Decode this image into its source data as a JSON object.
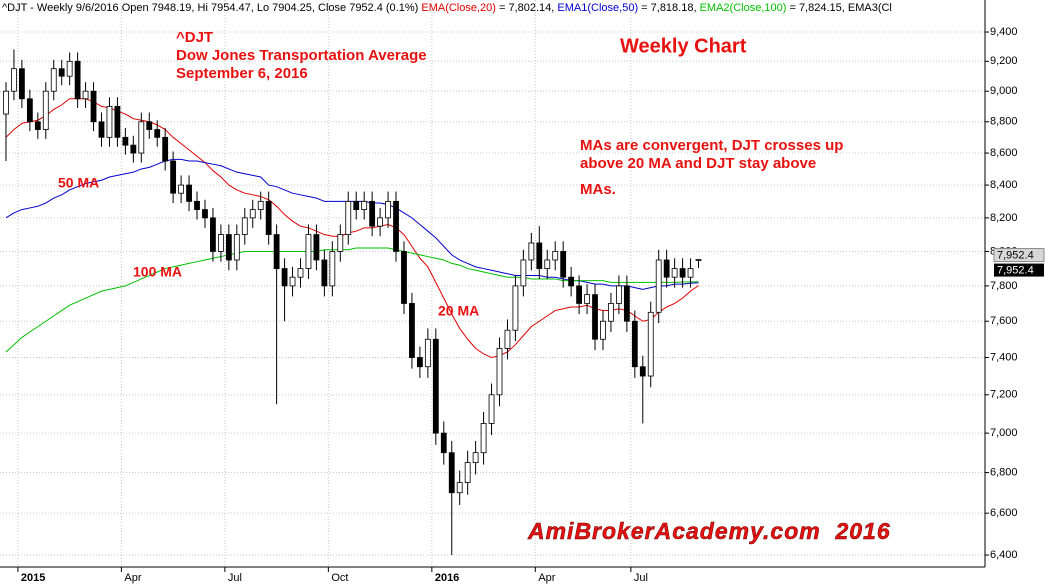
{
  "chart_data": {
    "type": "candlestick",
    "header": [
      {
        "text": "^DJT - Weekly 9/6/2016 Open 7948.19, Hi 7954.47, Lo 7904.25, Close 7952.4 (0.1%) ",
        "color": "#000000"
      },
      {
        "text": "EMA(Close,20)",
        "color": "#e00000"
      },
      {
        "text": " = 7,802.14, ",
        "color": "#000000"
      },
      {
        "text": "EMA1(Close,50)",
        "color": "#0000d0"
      },
      {
        "text": " = 7,818.18, ",
        "color": "#000000"
      },
      {
        "text": "EMA2(Close,100)",
        "color": "#00c000"
      },
      {
        "text": " = 7,824.15, EMA3(Cl",
        "color": "#000000"
      }
    ],
    "annotations": [
      "^DJT",
      "Dow Jones Transportation Average",
      "September 6, 2016",
      "Weekly Chart",
      "MAs are convergent, DJT crosses up",
      "above 20 MA and DJT stay above",
      "MAs.",
      "50 MA",
      "100 MA",
      "20 MA",
      "AmiBrokerAcademy.com  2016"
    ],
    "price_labels": [
      "7,952.4",
      "7,952.4"
    ],
    "last_value": 7952.4,
    "categories": [
      null,
      null,
      "2015",
      null,
      null,
      null,
      null,
      null,
      null,
      null,
      null,
      null,
      null,
      null,
      null,
      "Apr",
      null,
      null,
      null,
      null,
      null,
      null,
      null,
      null,
      null,
      null,
      null,
      null,
      "Jul",
      null,
      null,
      null,
      null,
      null,
      null,
      null,
      null,
      null,
      null,
      null,
      null,
      "Oct",
      null,
      null,
      null,
      null,
      null,
      null,
      null,
      null,
      null,
      null,
      null,
      null,
      "2016",
      null,
      null,
      null,
      null,
      null,
      null,
      null,
      null,
      null,
      null,
      null,
      null,
      "Apr",
      null,
      null,
      null,
      null,
      null,
      null,
      null,
      null,
      null,
      null,
      null,
      "Jul",
      null,
      null,
      null,
      null,
      null,
      null,
      null,
      null
    ],
    "bold_categories": [
      "2015",
      "2016"
    ],
    "open": [
      8850,
      9000,
      9150,
      8950,
      8800,
      8750,
      9000,
      9150,
      9100,
      9200,
      8950,
      9000,
      8800,
      8700,
      8900,
      8700,
      8650,
      8600,
      8800,
      8750,
      8700,
      8550,
      8350,
      8400,
      8300,
      8250,
      8200,
      8000,
      8100,
      7950,
      8100,
      8200,
      8250,
      8300,
      8100,
      7900,
      7800,
      7850,
      7900,
      8100,
      7950,
      7800,
      8000,
      8100,
      8300,
      8250,
      8300,
      8150,
      8200,
      8300,
      8000,
      7700,
      7400,
      7350,
      7500,
      7000,
      6900,
      6700,
      6750,
      6850,
      6900,
      7050,
      7200,
      7450,
      7550,
      7800,
      7950,
      8050,
      7900,
      7950,
      8000,
      7850,
      7800,
      7700,
      7750,
      7500,
      7600,
      7700,
      7800,
      7600,
      7350,
      7300,
      7650,
      7950,
      7850,
      7900,
      7850,
      7948.19
    ],
    "high": [
      9060,
      9280,
      9210,
      9010,
      8860,
      9060,
      9210,
      9210,
      9260,
      9260,
      9060,
      9060,
      8860,
      8960,
      8960,
      8760,
      8710,
      8860,
      8860,
      8810,
      8760,
      8610,
      8460,
      8460,
      8360,
      8310,
      8260,
      8160,
      8160,
      8160,
      8260,
      8310,
      8360,
      8360,
      8160,
      7960,
      7910,
      7960,
      8160,
      8160,
      8010,
      8060,
      8160,
      8360,
      8360,
      8360,
      8360,
      8260,
      8360,
      8360,
      8060,
      7760,
      7460,
      7560,
      7560,
      7060,
      6960,
      6810,
      6910,
      6960,
      7110,
      7260,
      7510,
      7610,
      7860,
      8010,
      8110,
      8150,
      8010,
      8060,
      8060,
      7910,
      7860,
      7810,
      7810,
      7660,
      7760,
      7860,
      7860,
      7660,
      7410,
      7710,
      8010,
      8010,
      7960,
      7960,
      7960,
      7954.47
    ],
    "low": [
      8550,
      8940,
      8890,
      8740,
      8690,
      8690,
      8940,
      9040,
      9040,
      8890,
      8890,
      8740,
      8640,
      8640,
      8640,
      8590,
      8540,
      8540,
      8690,
      8640,
      8490,
      8290,
      8290,
      8240,
      8190,
      8140,
      7940,
      7940,
      7890,
      7890,
      8040,
      8140,
      8190,
      8040,
      7150,
      7600,
      7740,
      7790,
      7840,
      7890,
      7740,
      7740,
      7940,
      8040,
      8190,
      8190,
      8090,
      8090,
      8140,
      7940,
      7640,
      7340,
      7290,
      7290,
      6940,
      6840,
      6400,
      6640,
      6690,
      6790,
      6840,
      6990,
      7140,
      7390,
      7490,
      7740,
      7890,
      7840,
      7840,
      7890,
      7790,
      7740,
      7640,
      7640,
      7440,
      7440,
      7540,
      7640,
      7540,
      7290,
      7050,
      7240,
      7590,
      7790,
      7790,
      7790,
      7790,
      7904.25
    ],
    "close": [
      9000,
      9150,
      8950,
      8800,
      8750,
      9000,
      9150,
      9100,
      9200,
      8950,
      9000,
      8800,
      8700,
      8900,
      8700,
      8650,
      8600,
      8800,
      8750,
      8700,
      8550,
      8350,
      8400,
      8300,
      8250,
      8200,
      8000,
      8100,
      7950,
      8100,
      8200,
      8250,
      8300,
      8100,
      7900,
      7800,
      7850,
      7900,
      8100,
      7950,
      7800,
      8000,
      8100,
      8300,
      8250,
      8300,
      8150,
      8200,
      8300,
      8000,
      7700,
      7400,
      7350,
      7500,
      7000,
      6900,
      6700,
      6750,
      6850,
      6900,
      7050,
      7200,
      7450,
      7550,
      7800,
      7950,
      8050,
      7900,
      7950,
      8000,
      7850,
      7800,
      7700,
      7750,
      7500,
      7600,
      7700,
      7800,
      7600,
      7350,
      7300,
      7650,
      7950,
      7850,
      7900,
      7850,
      7900,
      7952.4
    ],
    "up_color": "#ffffff",
    "down_color": "#000000",
    "candle_edge": "#000000",
    "series": [
      {
        "name": "EMA(Close,20)",
        "color": "#e00000",
        "values": [
          8700,
          8750,
          8790,
          8800,
          8810,
          8840,
          8880,
          8910,
          8950,
          8950,
          8950,
          8930,
          8900,
          8890,
          8870,
          8850,
          8820,
          8810,
          8800,
          8780,
          8750,
          8700,
          8660,
          8620,
          8580,
          8540,
          8490,
          8450,
          8400,
          8370,
          8350,
          8340,
          8330,
          8310,
          8270,
          8220,
          8180,
          8150,
          8140,
          8120,
          8100,
          8090,
          8090,
          8110,
          8120,
          8140,
          8140,
          8150,
          8160,
          8140,
          8100,
          8030,
          7960,
          7910,
          7820,
          7730,
          7640,
          7560,
          7500,
          7450,
          7420,
          7400,
          7410,
          7430,
          7470,
          7520,
          7570,
          7600,
          7630,
          7660,
          7670,
          7680,
          7680,
          7690,
          7670,
          7660,
          7660,
          7670,
          7660,
          7630,
          7600,
          7610,
          7650,
          7680,
          7700,
          7730,
          7770,
          7802.14
        ]
      },
      {
        "name": "EMA1(Close,50)",
        "color": "#0000d0",
        "values": [
          8200,
          8230,
          8250,
          8260,
          8270,
          8290,
          8320,
          8340,
          8370,
          8390,
          8410,
          8420,
          8430,
          8450,
          8460,
          8470,
          8480,
          8500,
          8510,
          8530,
          8550,
          8560,
          8560,
          8550,
          8550,
          8540,
          8530,
          8520,
          8500,
          8480,
          8470,
          8460,
          8450,
          8400,
          8390,
          8370,
          8350,
          8340,
          8330,
          8320,
          8300,
          8300,
          8300,
          8300,
          8300,
          8300,
          8290,
          8290,
          8280,
          8260,
          8230,
          8200,
          8160,
          8120,
          8080,
          8030,
          7980,
          7950,
          7930,
          7910,
          7900,
          7890,
          7880,
          7870,
          7860,
          7860,
          7860,
          7860,
          7850,
          7850,
          7840,
          7830,
          7830,
          7820,
          7810,
          7810,
          7800,
          7800,
          7800,
          7790,
          7780,
          7790,
          7800,
          7800,
          7810,
          7810,
          7815,
          7818.18
        ]
      },
      {
        "name": "EMA2(Close,100)",
        "color": "#00c000",
        "values": [
          7430,
          7470,
          7510,
          7540,
          7570,
          7600,
          7630,
          7660,
          7690,
          7710,
          7730,
          7750,
          7770,
          7780,
          7790,
          7800,
          7820,
          7840,
          7860,
          7880,
          7900,
          7910,
          7920,
          7930,
          7940,
          7950,
          7960,
          7970,
          7980,
          7990,
          8000,
          8000,
          8000,
          8000,
          8000,
          8000,
          8000,
          8000,
          8000,
          8000,
          8010,
          8010,
          8010,
          8010,
          8020,
          8020,
          8020,
          8020,
          8020,
          8010,
          8000,
          7990,
          7980,
          7970,
          7960,
          7950,
          7930,
          7920,
          7900,
          7890,
          7880,
          7870,
          7860,
          7850,
          7850,
          7850,
          7840,
          7840,
          7840,
          7840,
          7830,
          7830,
          7830,
          7830,
          7830,
          7830,
          7820,
          7820,
          7820,
          7820,
          7820,
          7820,
          7820,
          7820,
          7820,
          7822,
          7823,
          7824.15
        ]
      }
    ],
    "ylim": [
      6344,
      9624
    ],
    "log_scale": true,
    "grid": true,
    "grid_color": "#c8c8c8",
    "yticks": [
      {
        "value": 6400,
        "label": "6,400"
      },
      {
        "value": 6600,
        "label": "6,600"
      },
      {
        "value": 6800,
        "label": "6,800"
      },
      {
        "value": 7000,
        "label": "7,000"
      },
      {
        "value": 7200,
        "label": "7,200"
      },
      {
        "value": 7400,
        "label": "7,400"
      },
      {
        "value": 7600,
        "label": "7,600"
      },
      {
        "value": 7800,
        "label": "7,800"
      },
      {
        "value": 8000,
        "label": "8,000"
      },
      {
        "value": 8200,
        "label": "8,200"
      },
      {
        "value": 8400,
        "label": "8,400"
      },
      {
        "value": 8600,
        "label": "8,600"
      },
      {
        "value": 8800,
        "label": "8,800"
      },
      {
        "value": 9000,
        "label": "9,000"
      },
      {
        "value": 9200,
        "label": "9,200"
      },
      {
        "value": 9400,
        "label": "9,400"
      }
    ]
  }
}
